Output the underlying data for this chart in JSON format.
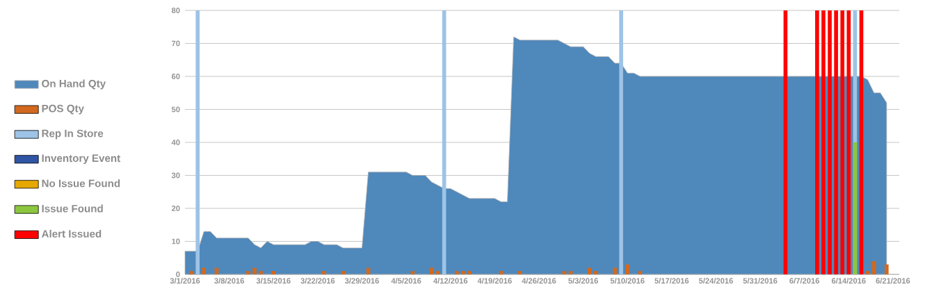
{
  "chart_data": {
    "type": "area",
    "x": [
      "2016-03-01",
      "2016-03-02",
      "2016-03-03",
      "2016-03-04",
      "2016-03-05",
      "2016-03-06",
      "2016-03-07",
      "2016-03-08",
      "2016-03-09",
      "2016-03-10",
      "2016-03-11",
      "2016-03-12",
      "2016-03-13",
      "2016-03-14",
      "2016-03-15",
      "2016-03-16",
      "2016-03-17",
      "2016-03-18",
      "2016-03-19",
      "2016-03-20",
      "2016-03-21",
      "2016-03-22",
      "2016-03-23",
      "2016-03-24",
      "2016-03-25",
      "2016-03-26",
      "2016-03-27",
      "2016-03-28",
      "2016-03-29",
      "2016-03-30",
      "2016-03-31",
      "2016-04-01",
      "2016-04-02",
      "2016-04-03",
      "2016-04-04",
      "2016-04-05",
      "2016-04-06",
      "2016-04-07",
      "2016-04-08",
      "2016-04-09",
      "2016-04-10",
      "2016-04-11",
      "2016-04-12",
      "2016-04-13",
      "2016-04-14",
      "2016-04-15",
      "2016-04-16",
      "2016-04-17",
      "2016-04-18",
      "2016-04-19",
      "2016-04-20",
      "2016-04-21",
      "2016-04-22",
      "2016-04-23",
      "2016-04-24",
      "2016-04-25",
      "2016-04-26",
      "2016-04-27",
      "2016-04-28",
      "2016-04-29",
      "2016-04-30",
      "2016-05-01",
      "2016-05-02",
      "2016-05-03",
      "2016-05-04",
      "2016-05-05",
      "2016-05-06",
      "2016-05-07",
      "2016-05-08",
      "2016-05-09",
      "2016-05-10",
      "2016-05-11",
      "2016-05-12",
      "2016-05-13",
      "2016-05-14",
      "2016-05-15",
      "2016-05-16",
      "2016-05-17",
      "2016-05-18",
      "2016-05-19",
      "2016-05-20",
      "2016-05-21",
      "2016-05-22",
      "2016-05-23",
      "2016-05-24",
      "2016-05-25",
      "2016-05-26",
      "2016-05-27",
      "2016-05-28",
      "2016-05-29",
      "2016-05-30",
      "2016-05-31",
      "2016-06-01",
      "2016-06-02",
      "2016-06-03",
      "2016-06-04",
      "2016-06-05",
      "2016-06-06",
      "2016-06-07",
      "2016-06-08",
      "2016-06-09",
      "2016-06-10",
      "2016-06-11",
      "2016-06-12",
      "2016-06-13",
      "2016-06-14",
      "2016-06-15",
      "2016-06-16",
      "2016-06-17",
      "2016-06-18",
      "2016-06-19",
      "2016-06-20"
    ],
    "series": [
      {
        "name": "On Hand Qty",
        "color": "#4f88bb",
        "values": [
          7,
          7,
          7,
          13,
          13,
          11,
          11,
          11,
          11,
          11,
          11,
          9,
          8,
          10,
          9,
          9,
          9,
          9,
          9,
          9,
          10,
          10,
          9,
          9,
          9,
          8,
          8,
          8,
          8,
          31,
          31,
          31,
          31,
          31,
          31,
          31,
          30,
          30,
          30,
          28,
          27,
          26,
          26,
          25,
          24,
          23,
          23,
          23,
          23,
          23,
          22,
          22,
          72,
          71,
          71,
          71,
          71,
          71,
          71,
          71,
          70,
          69,
          69,
          69,
          67,
          66,
          66,
          66,
          64,
          64,
          61,
          61,
          60,
          60,
          60,
          60,
          60,
          60,
          60,
          60,
          60,
          60,
          60,
          60,
          60,
          60,
          60,
          60,
          60,
          60,
          60,
          60,
          60,
          60,
          60,
          60,
          60,
          60,
          60,
          60,
          60,
          60,
          60,
          60,
          60,
          60,
          60,
          60,
          59,
          55,
          55,
          52
        ]
      },
      {
        "name": "POS Qty",
        "type": "bar",
        "color": "#d2691e",
        "x": [
          "2016-03-02",
          "2016-03-04",
          "2016-03-06",
          "2016-03-11",
          "2016-03-12",
          "2016-03-13",
          "2016-03-15",
          "2016-03-23",
          "2016-03-26",
          "2016-03-30",
          "2016-04-06",
          "2016-04-09",
          "2016-04-10",
          "2016-04-13",
          "2016-04-14",
          "2016-04-15",
          "2016-04-20",
          "2016-04-23",
          "2016-04-30",
          "2016-05-01",
          "2016-05-04",
          "2016-05-05",
          "2016-05-08",
          "2016-05-10",
          "2016-05-12",
          "2016-06-17",
          "2016-06-18",
          "2016-06-20"
        ],
        "values": [
          1,
          2,
          2,
          1,
          2,
          1,
          1,
          1,
          1,
          2,
          1,
          2,
          1,
          1,
          1,
          1,
          1,
          1,
          1,
          1,
          2,
          1,
          2,
          3,
          1,
          1,
          4,
          3
        ]
      },
      {
        "name": "Rep In Store",
        "type": "bar",
        "color": "#9dc3e6",
        "x": [
          "2016-03-03",
          "2016-04-11",
          "2016-05-09",
          "2016-06-15"
        ],
        "values": [
          80,
          80,
          80,
          80
        ]
      },
      {
        "name": "Inventory Event",
        "type": "bar",
        "color": "#2f55a4",
        "values": [
          null,
          null,
          null,
          null,
          null,
          null,
          null,
          null,
          null,
          null,
          null,
          null,
          null,
          null,
          null,
          null,
          null,
          null,
          null,
          null,
          null,
          null,
          null,
          null,
          null,
          null,
          null,
          null,
          null,
          null,
          null,
          null,
          null,
          null,
          null,
          null,
          null,
          null,
          null,
          null,
          null,
          null,
          null,
          null,
          null,
          null,
          null,
          null,
          null,
          null,
          null,
          null,
          null,
          null,
          null,
          null,
          null,
          null,
          null,
          null,
          null,
          null,
          null,
          null,
          null,
          null,
          null,
          null,
          null,
          null,
          null,
          null,
          null,
          null,
          null,
          null,
          null,
          null,
          null,
          null,
          null,
          null,
          null,
          null,
          null,
          null,
          null,
          null,
          null,
          null,
          null,
          null,
          null,
          null,
          null,
          null,
          null,
          null,
          null,
          null,
          null,
          null,
          null,
          null,
          null,
          null,
          null,
          null,
          null,
          null,
          null,
          null
        ]
      },
      {
        "name": "No Issue Found",
        "type": "bar",
        "color": "#e6a800",
        "values": [
          null,
          null,
          null,
          null,
          null,
          null,
          null,
          null,
          null,
          null,
          null,
          null,
          null,
          null,
          null,
          null,
          null,
          null,
          null,
          null,
          null,
          null,
          null,
          null,
          null,
          null,
          null,
          null,
          null,
          null,
          null,
          null,
          null,
          null,
          null,
          null,
          null,
          null,
          null,
          null,
          null,
          null,
          null,
          null,
          null,
          null,
          null,
          null,
          null,
          null,
          null,
          null,
          null,
          null,
          null,
          null,
          null,
          null,
          null,
          null,
          null,
          null,
          null,
          null,
          null,
          null,
          null,
          null,
          null,
          null,
          null,
          null,
          null,
          null,
          null,
          null,
          null,
          null,
          null,
          null,
          null,
          null,
          null,
          null,
          null,
          null,
          null,
          null,
          null,
          null,
          null,
          null,
          null,
          null,
          null,
          null,
          null,
          null,
          null,
          null,
          null,
          null,
          null,
          null,
          null,
          null,
          null,
          null,
          null,
          null,
          null,
          null
        ]
      },
      {
        "name": "Issue Found",
        "type": "bar",
        "color": "#8cc63f",
        "x": [
          "2016-06-15"
        ],
        "values": [
          40
        ]
      },
      {
        "name": "Alert Issued",
        "type": "bar",
        "color": "#ff0000",
        "x": [
          "2016-06-04",
          "2016-06-09",
          "2016-06-10",
          "2016-06-11",
          "2016-06-12",
          "2016-06-13",
          "2016-06-14",
          "2016-06-16"
        ],
        "values": [
          80,
          80,
          80,
          80,
          80,
          80,
          80,
          80
        ]
      }
    ],
    "xlim": [
      "2016-03-01",
      "2016-06-22"
    ],
    "xticks": [
      {
        "value": "2016-03-01",
        "label": "3/1/2016"
      },
      {
        "value": "2016-03-08",
        "label": "3/8/2016"
      },
      {
        "value": "2016-03-15",
        "label": "3/15/2016"
      },
      {
        "value": "2016-03-22",
        "label": "3/22/2016"
      },
      {
        "value": "2016-03-29",
        "label": "3/29/2016"
      },
      {
        "value": "2016-04-05",
        "label": "4/5/2016"
      },
      {
        "value": "2016-04-12",
        "label": "4/12/2016"
      },
      {
        "value": "2016-04-19",
        "label": "4/19/2016"
      },
      {
        "value": "2016-04-26",
        "label": "4/26/2016"
      },
      {
        "value": "2016-05-03",
        "label": "5/3/2016"
      },
      {
        "value": "2016-05-10",
        "label": "5/10/2016"
      },
      {
        "value": "2016-05-17",
        "label": "5/17/2016"
      },
      {
        "value": "2016-05-24",
        "label": "5/24/2016"
      },
      {
        "value": "2016-05-31",
        "label": "5/31/2016"
      },
      {
        "value": "2016-06-07",
        "label": "6/7/2016"
      },
      {
        "value": "2016-06-14",
        "label": "6/14/2016"
      },
      {
        "value": "2016-06-21",
        "label": "6/21/2016"
      }
    ],
    "ylim": [
      0,
      80
    ],
    "yticks": [
      0,
      10,
      20,
      30,
      40,
      50,
      60,
      70,
      80
    ],
    "grid": "y",
    "legend": "left"
  }
}
